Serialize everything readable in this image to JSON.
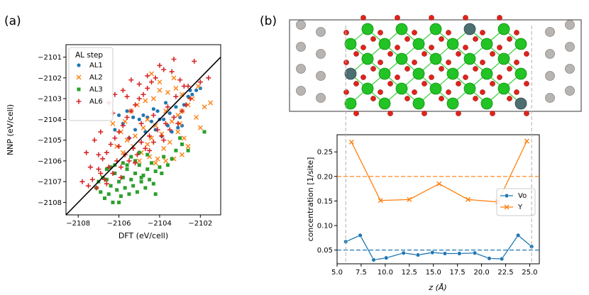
{
  "panels": {
    "a_label": "(a)",
    "b_label": "(b)"
  },
  "colors": {
    "AL1": "#1f77b4",
    "AL2": "#ff7f0e",
    "AL3": "#2ca02c",
    "AL6": "#d62728",
    "Vo": "#1f77b4",
    "Y": "#ff7f0e",
    "oxygen": "#e0231c",
    "zirconium": "#22c324",
    "yttrium": "#4d6f72",
    "metal_slab": "#b8b4b1"
  },
  "chart_data": [
    {
      "type": "scatter",
      "xlabel": "DFT (eV/cell)",
      "ylabel": "NNP (eV/cell)",
      "xlim": [
        -2108.6,
        -2101.0
      ],
      "ylim": [
        -2108.6,
        -2100.4
      ],
      "xticks": [
        -2108,
        -2106,
        -2104,
        -2102
      ],
      "yticks": [
        -2108,
        -2107,
        -2106,
        -2105,
        -2104,
        -2103,
        -2102,
        -2101
      ],
      "xtick_labels": [
        "−2108",
        "−2106",
        "−2104",
        "−2102"
      ],
      "ytick_labels": [
        "−2108",
        "−2107",
        "−2106",
        "−2105",
        "−2104",
        "−2103",
        "−2102",
        "−2101"
      ],
      "parity_line": true,
      "legend": {
        "title": "AL step",
        "placement": "top-left"
      },
      "series": [
        {
          "name": "AL1",
          "marker": "circle",
          "points": [
            [
              -2104.6,
              -2103.9
            ],
            [
              -2104.4,
              -2104.1
            ],
            [
              -2104.1,
              -2103.6
            ],
            [
              -2103.8,
              -2104.0
            ],
            [
              -2103.5,
              -2103.7
            ],
            [
              -2103.2,
              -2103.4
            ],
            [
              -2103.0,
              -2103.9
            ],
            [
              -2102.8,
              -2103.3
            ],
            [
              -2102.6,
              -2102.9
            ],
            [
              -2102.4,
              -2102.8
            ],
            [
              -2102.2,
              -2102.6
            ],
            [
              -2102.0,
              -2102.5
            ],
            [
              -2104.8,
              -2103.8
            ],
            [
              -2105.0,
              -2104.0
            ],
            [
              -2105.3,
              -2103.9
            ],
            [
              -2105.6,
              -2103.6
            ],
            [
              -2105.8,
              -2104.2
            ],
            [
              -2106.0,
              -2103.8
            ],
            [
              -2104.2,
              -2104.5
            ],
            [
              -2103.6,
              -2104.3
            ],
            [
              -2103.9,
              -2104.8
            ],
            [
              -2103.4,
              -2104.6
            ],
            [
              -2103.1,
              -2104.4
            ],
            [
              -2102.9,
              -2104.3
            ],
            [
              -2104.7,
              -2104.6
            ],
            [
              -2105.2,
              -2104.5
            ],
            [
              -2105.5,
              -2104.9
            ],
            [
              -2106.2,
              -2104.5
            ],
            [
              -2104.0,
              -2104.0
            ],
            [
              -2103.7,
              -2103.2
            ],
            [
              -2104.3,
              -2103.5
            ],
            [
              -2102.5,
              -2102.6
            ]
          ]
        },
        {
          "name": "AL2",
          "marker": "x",
          "points": [
            [
              -2104.6,
              -2104.0
            ],
            [
              -2104.2,
              -2104.3
            ],
            [
              -2103.7,
              -2103.6
            ],
            [
              -2103.4,
              -2104.1
            ],
            [
              -2103.1,
              -2103.8
            ],
            [
              -2102.9,
              -2103.6
            ],
            [
              -2102.6,
              -2103.3
            ],
            [
              -2102.4,
              -2103.0
            ],
            [
              -2102.1,
              -2102.4
            ],
            [
              -2101.8,
              -2103.4
            ],
            [
              -2101.5,
              -2103.2
            ],
            [
              -2102.9,
              -2102.8
            ],
            [
              -2103.2,
              -2102.5
            ],
            [
              -2103.6,
              -2102.7
            ],
            [
              -2104.0,
              -2102.6
            ],
            [
              -2104.3,
              -2103.0
            ],
            [
              -2104.7,
              -2103.1
            ],
            [
              -2105.1,
              -2103.3
            ],
            [
              -2105.4,
              -2103.6
            ],
            [
              -2105.7,
              -2104.1
            ],
            [
              -2105.9,
              -2104.6
            ],
            [
              -2105.6,
              -2105.0
            ],
            [
              -2105.3,
              -2105.3
            ],
            [
              -2104.9,
              -2105.6
            ],
            [
              -2104.5,
              -2105.8
            ],
            [
              -2104.1,
              -2105.9
            ],
            [
              -2103.7,
              -2106.0
            ],
            [
              -2103.3,
              -2105.9
            ],
            [
              -2102.9,
              -2105.7
            ],
            [
              -2102.6,
              -2105.3
            ],
            [
              -2102.8,
              -2104.9
            ],
            [
              -2103.1,
              -2104.6
            ],
            [
              -2103.5,
              -2105.1
            ],
            [
              -2103.9,
              -2104.7
            ],
            [
              -2104.4,
              -2104.9
            ],
            [
              -2104.8,
              -2104.4
            ],
            [
              -2105.2,
              -2104.8
            ],
            [
              -2105.8,
              -2105.6
            ],
            [
              -2106.1,
              -2105.3
            ],
            [
              -2106.3,
              -2104.2
            ],
            [
              -2104.0,
              -2102.2
            ],
            [
              -2104.4,
              -2101.8
            ],
            [
              -2103.3,
              -2102.0
            ],
            [
              -2102.2,
              -2103.9
            ],
            [
              -2103.8,
              -2105.4
            ],
            [
              -2104.6,
              -2105.2
            ],
            [
              -2105.0,
              -2106.0
            ],
            [
              -2104.2,
              -2106.1
            ],
            [
              -2102.0,
              -2104.4
            ],
            [
              -2103.0,
              -2104.2
            ]
          ]
        },
        {
          "name": "AL3",
          "marker": "square",
          "points": [
            [
              -2106.6,
              -2106.9
            ],
            [
              -2106.4,
              -2107.2
            ],
            [
              -2106.2,
              -2106.6
            ],
            [
              -2106.0,
              -2107.0
            ],
            [
              -2105.8,
              -2106.8
            ],
            [
              -2105.6,
              -2106.4
            ],
            [
              -2105.4,
              -2106.9
            ],
            [
              -2105.2,
              -2106.6
            ],
            [
              -2105.0,
              -2106.2
            ],
            [
              -2104.8,
              -2106.7
            ],
            [
              -2104.6,
              -2106.4
            ],
            [
              -2104.4,
              -2106.1
            ],
            [
              -2104.2,
              -2106.5
            ],
            [
              -2104.0,
              -2106.3
            ],
            [
              -2103.8,
              -2105.8
            ],
            [
              -2103.6,
              -2106.2
            ],
            [
              -2103.4,
              -2105.9
            ],
            [
              -2103.2,
              -2105.5
            ],
            [
              -2106.9,
              -2107.5
            ],
            [
              -2106.7,
              -2107.8
            ],
            [
              -2106.5,
              -2107.6
            ],
            [
              -2106.3,
              -2108.0
            ],
            [
              -2106.1,
              -2107.4
            ],
            [
              -2105.9,
              -2107.7
            ],
            [
              -2105.7,
              -2107.3
            ],
            [
              -2105.5,
              -2107.6
            ],
            [
              -2105.3,
              -2107.2
            ],
            [
              -2105.1,
              -2107.5
            ],
            [
              -2104.9,
              -2107.0
            ],
            [
              -2104.7,
              -2107.3
            ],
            [
              -2104.5,
              -2106.9
            ],
            [
              -2104.3,
              -2107.1
            ],
            [
              -2106.8,
              -2106.8
            ],
            [
              -2107.0,
              -2107.0
            ],
            [
              -2106.6,
              -2106.4
            ],
            [
              -2106.2,
              -2106.2
            ],
            [
              -2105.8,
              -2106.1
            ],
            [
              -2105.4,
              -2105.8
            ],
            [
              -2105.0,
              -2105.6
            ],
            [
              -2104.6,
              -2105.7
            ],
            [
              -2102.9,
              -2105.2
            ],
            [
              -2102.6,
              -2105.5
            ],
            [
              -2103.0,
              -2104.9
            ],
            [
              -2101.8,
              -2104.6
            ],
            [
              -2104.2,
              -2107.6
            ],
            [
              -2106.0,
              -2108.0
            ],
            [
              -2105.6,
              -2106.2
            ],
            [
              -2103.9,
              -2106.6
            ],
            [
              -2106.4,
              -2106.3
            ],
            [
              -2105.2,
              -2106.0
            ],
            [
              -2107.1,
              -2107.3
            ],
            [
              -2104.9,
              -2106.8
            ]
          ]
        },
        {
          "name": "AL6",
          "marker": "plus",
          "points": [
            [
              -2107.5,
              -2107.2
            ],
            [
              -2107.3,
              -2106.9
            ],
            [
              -2107.1,
              -2107.3
            ],
            [
              -2106.9,
              -2106.6
            ],
            [
              -2106.7,
              -2106.9
            ],
            [
              -2106.5,
              -2106.3
            ],
            [
              -2106.3,
              -2106.6
            ],
            [
              -2106.1,
              -2106.0
            ],
            [
              -2105.9,
              -2106.3
            ],
            [
              -2105.7,
              -2105.7
            ],
            [
              -2105.5,
              -2106.0
            ],
            [
              -2105.3,
              -2105.4
            ],
            [
              -2105.1,
              -2105.7
            ],
            [
              -2104.9,
              -2105.1
            ],
            [
              -2104.7,
              -2105.4
            ],
            [
              -2104.5,
              -2104.8
            ],
            [
              -2104.3,
              -2105.1
            ],
            [
              -2104.1,
              -2104.5
            ],
            [
              -2103.9,
              -2104.8
            ],
            [
              -2103.7,
              -2104.2
            ],
            [
              -2103.5,
              -2104.5
            ],
            [
              -2103.3,
              -2103.9
            ],
            [
              -2103.1,
              -2104.2
            ],
            [
              -2102.9,
              -2103.6
            ],
            [
              -2102.7,
              -2103.3
            ],
            [
              -2102.5,
              -2103.0
            ],
            [
              -2106.8,
              -2105.9
            ],
            [
              -2106.6,
              -2105.6
            ],
            [
              -2106.4,
              -2105.2
            ],
            [
              -2106.2,
              -2104.9
            ],
            [
              -2106.0,
              -2104.6
            ],
            [
              -2105.8,
              -2104.3
            ],
            [
              -2105.6,
              -2103.9
            ],
            [
              -2105.4,
              -2103.6
            ],
            [
              -2105.2,
              -2103.3
            ],
            [
              -2105.0,
              -2103.0
            ],
            [
              -2104.8,
              -2102.8
            ],
            [
              -2104.6,
              -2102.5
            ],
            [
              -2104.4,
              -2102.2
            ],
            [
              -2106.5,
              -2103.2
            ],
            [
              -2106.2,
              -2102.8
            ],
            [
              -2105.8,
              -2102.6
            ],
            [
              -2105.4,
              -2102.1
            ],
            [
              -2105.0,
              -2102.3
            ],
            [
              -2104.6,
              -2101.9
            ],
            [
              -2104.2,
              -2102.0
            ],
            [
              -2103.8,
              -2101.6
            ],
            [
              -2103.4,
              -2101.7
            ],
            [
              -2103.0,
              -2102.1
            ],
            [
              -2102.6,
              -2102.4
            ],
            [
              -2102.3,
              -2101.2
            ],
            [
              -2102.0,
              -2102.2
            ],
            [
              -2101.6,
              -2102.0
            ],
            [
              -2103.3,
              -2101.1
            ],
            [
              -2104.0,
              -2101.4
            ],
            [
              -2105.6,
              -2102.9
            ],
            [
              -2106.3,
              -2103.7
            ],
            [
              -2106.9,
              -2104.6
            ],
            [
              -2107.2,
              -2105.0
            ],
            [
              -2107.6,
              -2105.6
            ],
            [
              -2107.0,
              -2105.7
            ],
            [
              -2107.4,
              -2106.3
            ],
            [
              -2106.0,
              -2105.3
            ],
            [
              -2105.5,
              -2104.9
            ],
            [
              -2104.9,
              -2104.2
            ],
            [
              -2104.3,
              -2103.8
            ],
            [
              -2103.6,
              -2103.4
            ],
            [
              -2103.2,
              -2102.9
            ],
            [
              -2102.8,
              -2102.4
            ],
            [
              -2106.6,
              -2107.1
            ],
            [
              -2105.9,
              -2106.8
            ],
            [
              -2105.2,
              -2106.1
            ],
            [
              -2104.5,
              -2105.5
            ],
            [
              -2103.8,
              -2105.0
            ],
            [
              -2107.8,
              -2107.0
            ],
            [
              -2107.0,
              -2106.4
            ]
          ]
        }
      ]
    },
    {
      "type": "line",
      "xlabel": "z (Å)",
      "ylabel": "concentration [1/site]",
      "xlim": [
        5.0,
        26.0
      ],
      "ylim": [
        0.022,
        0.285
      ],
      "xticks": [
        5.0,
        7.5,
        10.0,
        12.5,
        15.0,
        17.5,
        20.0,
        22.5,
        25.0
      ],
      "xtick_labels": [
        "5.0",
        "7.5",
        "10.0",
        "12.5",
        "15.0",
        "17.5",
        "20.0",
        "22.5",
        "25.0"
      ],
      "yticks": [
        0.05,
        0.1,
        0.15,
        0.2,
        0.25
      ],
      "ytick_labels": [
        "0.05",
        "0.10",
        "0.15",
        "0.20",
        "0.25"
      ],
      "legend": {
        "placement": "center-right"
      },
      "vlines": [
        5.9,
        25.2
      ],
      "hlines": [
        {
          "series": "Vo",
          "y": 0.05
        },
        {
          "series": "Y",
          "y": 0.2
        }
      ],
      "series": [
        {
          "name": "Vo",
          "marker": "circle",
          "x": [
            5.9,
            7.4,
            8.8,
            10.1,
            11.9,
            13.4,
            14.9,
            16.2,
            17.7,
            19.3,
            20.8,
            22.1,
            23.8,
            25.2
          ],
          "y": [
            0.067,
            0.08,
            0.03,
            0.034,
            0.044,
            0.04,
            0.045,
            0.043,
            0.043,
            0.044,
            0.033,
            0.032,
            0.08,
            0.057
          ]
        },
        {
          "name": "Y",
          "marker": "x",
          "x": [
            6.5,
            9.5,
            12.5,
            15.6,
            18.6,
            21.7,
            24.7
          ],
          "y": [
            0.27,
            0.151,
            0.153,
            0.185,
            0.153,
            0.148,
            0.272
          ]
        }
      ]
    }
  ]
}
